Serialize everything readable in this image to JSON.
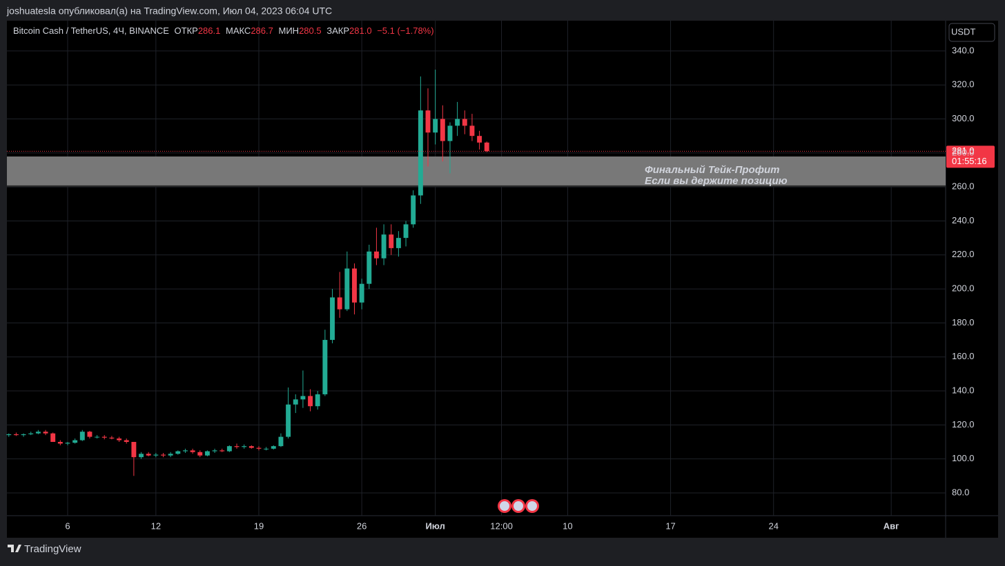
{
  "header": {
    "published": "joshuatesla опубликовал(а) на TradingView.com, Июл 04, 2023 06:04 UTC",
    "brand": "TradingView"
  },
  "chart_data": {
    "type": "candlestick",
    "symbol": "Bitcoin Cash / TetherUS, 4Ч, BINANCE",
    "legend": {
      "open_label": "ОТКР",
      "open": "286.1",
      "high_label": "МАКС",
      "high": "286.7",
      "low_label": "МИН",
      "low": "280.5",
      "close_label": "ЗАКР",
      "close": "281.0",
      "change": "−5.1 (−1.78%)"
    },
    "currency": "USDT",
    "up_color": "#22ab94",
    "down_color": "#f23645",
    "x": [
      2,
      2.5,
      3,
      3.5,
      4,
      4.5,
      5,
      5.5,
      6,
      6.5,
      7,
      7.5,
      8,
      8.5,
      9,
      9.5,
      10,
      10.5,
      11,
      11.5,
      12,
      12.5,
      13,
      13.5,
      14,
      14.5,
      15,
      15.5,
      16,
      16.5,
      17,
      17.5,
      18,
      18.5,
      19,
      19.5,
      20,
      20.5,
      21,
      21.5,
      22,
      22.5,
      23,
      23.5,
      24,
      24.5,
      25,
      25.5,
      26,
      26.5,
      27,
      27.5,
      28,
      28.5,
      29,
      29.5,
      30,
      30.5,
      31,
      31.5,
      32,
      32.5,
      33,
      33.5,
      34,
      34.5
    ],
    "open": [
      114,
      114.5,
      114,
      114.5,
      115,
      116,
      115,
      110,
      109,
      109.5,
      111,
      116,
      113,
      113,
      112.5,
      112,
      111,
      110,
      101,
      103,
      102,
      102.5,
      102,
      103,
      104.5,
      105,
      104,
      102,
      104.5,
      105,
      104.5,
      107.5,
      107,
      107.5,
      106.5,
      106,
      106,
      107.5,
      113,
      132,
      135,
      137,
      131,
      138,
      170,
      195,
      188,
      212,
      192,
      203,
      222,
      218,
      232,
      224,
      230,
      238,
      255,
      305,
      292,
      300,
      287,
      296,
      300,
      296,
      290,
      286.1
    ],
    "high": [
      115,
      115.5,
      115,
      116,
      117,
      117,
      115.5,
      111,
      110,
      112,
      117,
      116.5,
      114,
      114,
      113.5,
      113,
      112,
      110,
      104,
      104,
      103.5,
      103.5,
      104,
      105,
      106,
      106,
      105,
      105,
      106,
      106,
      108,
      109,
      108.5,
      108,
      107.5,
      107,
      108,
      115,
      142,
      138,
      152,
      141,
      140,
      176,
      200,
      210,
      222,
      215,
      206,
      226,
      236,
      238,
      238,
      234,
      240,
      258,
      325,
      318,
      329,
      308,
      298,
      310,
      305,
      303,
      293,
      286.7
    ],
    "low": [
      113,
      113.5,
      113,
      114,
      114.5,
      114,
      110,
      108,
      108,
      109,
      110.5,
      112,
      112,
      111.5,
      111.5,
      110,
      109,
      90,
      100,
      101.5,
      101,
      101,
      101,
      102.5,
      103.5,
      103,
      101,
      101.5,
      103.5,
      104,
      104,
      106,
      106,
      106,
      105,
      105,
      105.5,
      107,
      112,
      127,
      130,
      128,
      129,
      137,
      168,
      183,
      187,
      185,
      188,
      200,
      214,
      214,
      220,
      219,
      225,
      236,
      250,
      272,
      285,
      275,
      268,
      290,
      291,
      287,
      282,
      280.5
    ],
    "close": [
      114.5,
      114,
      114.5,
      115,
      116,
      115,
      110,
      109,
      109.5,
      111,
      116,
      113,
      113,
      112.5,
      112,
      111,
      110,
      101,
      103,
      102,
      102.5,
      102,
      103,
      104.5,
      105,
      104,
      102,
      104.5,
      105,
      104.5,
      107.5,
      107,
      107.5,
      106.5,
      106,
      106,
      107.5,
      113,
      132,
      135,
      137,
      131,
      138,
      170,
      195,
      188,
      212,
      192,
      203,
      222,
      218,
      232,
      224,
      230,
      238,
      255,
      305,
      292,
      300,
      287,
      296,
      300,
      296,
      290,
      286.1,
      281
    ],
    "xlim": [
      1.87,
      65.7
    ],
    "xticks": [
      6,
      12,
      19,
      26,
      {
        "value": 31,
        "label": "Июл"
      },
      {
        "value": 35.5,
        "label": "12:00"
      },
      {
        "value": 40,
        "label": "10"
      },
      {
        "value": 47,
        "label": "17"
      },
      {
        "value": 54,
        "label": "24"
      },
      {
        "value": 62,
        "label": "Авг"
      }
    ],
    "ylim": [
      66.6,
      357.8
    ],
    "yticks": [
      {
        "value": 80,
        "label": "80.0"
      },
      {
        "value": 100,
        "label": "100.0"
      },
      {
        "value": 120,
        "label": "120.0"
      },
      {
        "value": 140,
        "label": "140.0"
      },
      {
        "value": 160,
        "label": "160.0"
      },
      {
        "value": 180,
        "label": "180.0"
      },
      {
        "value": 200,
        "label": "200.0"
      },
      {
        "value": 220,
        "label": "220.0"
      },
      {
        "value": 240,
        "label": "240.0"
      },
      {
        "value": 260,
        "label": "260.0"
      },
      {
        "value": 280,
        "label": "280.0"
      },
      {
        "value": 300,
        "label": "300.0"
      },
      {
        "value": 320,
        "label": "320.0"
      },
      {
        "value": 340,
        "label": "340.0"
      }
    ],
    "grid": true,
    "last_price": {
      "value": 281,
      "label": "281.0",
      "countdown": "01:55:16"
    },
    "zone": {
      "low": 260.5,
      "high": 277.9,
      "color": "#787878",
      "lines": [
        "Финальный Тейк-Профит",
        "Если вы держите позицию"
      ]
    }
  }
}
